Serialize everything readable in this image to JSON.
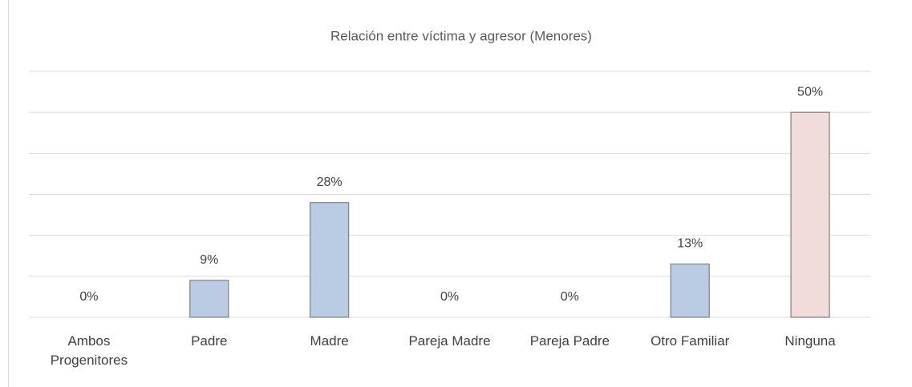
{
  "chart_data": {
    "type": "bar",
    "title": "Relación entre víctima y agresor (Menores)",
    "categories": [
      "Ambos Progenitores",
      "Padre",
      "Madre",
      "Pareja Madre",
      "Pareja Padre",
      "Otro Familiar",
      "Ninguna"
    ],
    "values": [
      0,
      9,
      28,
      0,
      0,
      13,
      50
    ],
    "value_labels": [
      "0%",
      "9%",
      "28%",
      "0%",
      "0%",
      "13%",
      "50%"
    ],
    "colors": [
      "#b9cce4",
      "#b9cce4",
      "#b9cce4",
      "#b9cce4",
      "#b9cce4",
      "#b9cce4",
      "#f2dcdb"
    ],
    "ylim": [
      0,
      60
    ],
    "yticks": [
      0,
      10,
      20,
      30,
      40,
      50,
      60
    ],
    "grid": true
  }
}
